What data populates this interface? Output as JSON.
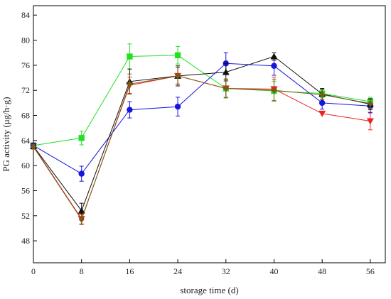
{
  "chart_data": {
    "type": "line",
    "xlabel": "storage time (d)",
    "ylabel": "PG activity (μg/h·g)",
    "x": [
      0,
      8,
      16,
      24,
      32,
      40,
      48,
      56
    ],
    "xticks": [
      0,
      8,
      16,
      24,
      32,
      40,
      48,
      56
    ],
    "yticks": [
      48,
      52,
      56,
      60,
      64,
      68,
      72,
      76,
      80,
      84
    ],
    "xlim": [
      0,
      58.5
    ],
    "ylim": [
      44.5,
      85.5
    ],
    "grid": false,
    "legend": "none",
    "series": [
      {
        "marker": "square",
        "color": "#22e022",
        "values": [
          63.2,
          64.4,
          77.4,
          77.6,
          72.3,
          71.9,
          71.5,
          70.2
        ],
        "errors": [
          0.4,
          1.1,
          2.0,
          1.4,
          1.4,
          1.5,
          0.7,
          0.7
        ]
      },
      {
        "marker": "triangle-down",
        "color": "#ee2020",
        "values": [
          63.1,
          51.5,
          72.8,
          74.3,
          72.3,
          72.2,
          68.3,
          67.1
        ],
        "errors": [
          0.4,
          0.8,
          1.3,
          1.3,
          1.5,
          1.9,
          0.0,
          1.4
        ]
      },
      {
        "marker": "circle",
        "color": "#1515e0",
        "values": [
          63.2,
          58.7,
          68.9,
          69.4,
          76.3,
          75.9,
          70.0,
          69.5
        ],
        "errors": [
          0.4,
          1.2,
          1.3,
          1.5,
          1.7,
          1.5,
          1.0,
          1.1
        ]
      },
      {
        "marker": "triangle-up",
        "color": "#111111",
        "values": [
          63.1,
          52.8,
          73.4,
          74.3,
          74.9,
          77.4,
          71.4,
          69.8
        ],
        "errors": [
          0.4,
          1.2,
          2.0,
          1.6,
          1.4,
          0.6,
          0.9,
          0.9
        ]
      },
      {
        "marker": "diamond",
        "color": "#7a5a18",
        "values": [
          63.0,
          51.4,
          73.0,
          74.3,
          72.3,
          72.0,
          71.3,
          69.9
        ],
        "errors": [
          0.4,
          0.8,
          1.6,
          1.3,
          1.5,
          1.7,
          0.8,
          0.8
        ]
      }
    ]
  }
}
